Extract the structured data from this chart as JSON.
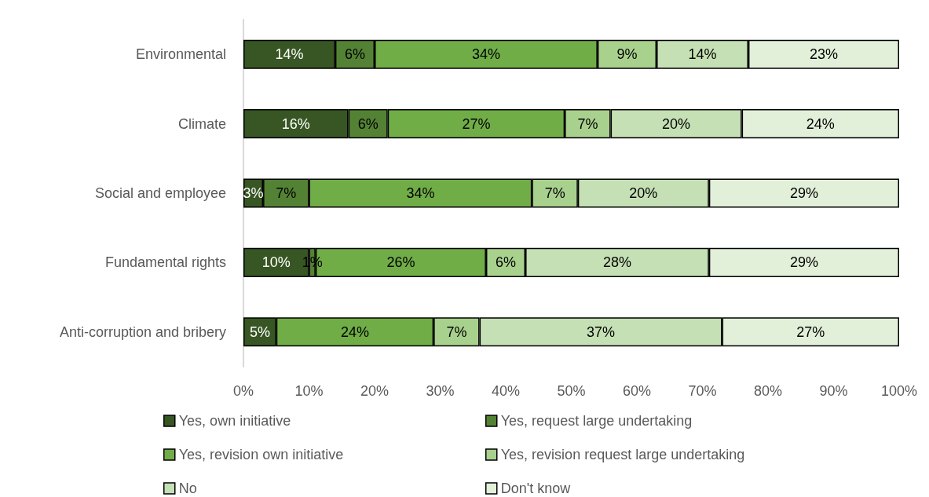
{
  "chart_data": {
    "type": "bar",
    "orientation": "horizontal",
    "stacked": true,
    "categories": [
      "Environmental",
      "Climate",
      "Social and employee",
      "Fundamental rights",
      "Anti-corruption and bribery"
    ],
    "series": [
      {
        "name": "Yes, own initiative",
        "color": "#375623",
        "values": [
          14,
          16,
          3,
          10,
          5
        ],
        "value_labels": [
          "14%",
          "16%",
          "3%",
          "10%",
          "5%"
        ]
      },
      {
        "name": "Yes, request large undertaking",
        "color": "#548235",
        "values": [
          6,
          6,
          7,
          1,
          0
        ],
        "value_labels": [
          "6%",
          "6%",
          "7%",
          "1%",
          null
        ]
      },
      {
        "name": "Yes, revision own initiative",
        "color": "#70ad47",
        "values": [
          34,
          27,
          34,
          26,
          24
        ],
        "value_labels": [
          "34%",
          "27%",
          "34%",
          "26%",
          "24%"
        ]
      },
      {
        "name": "Yes, revision request large undertaking",
        "color": "#a9d18e",
        "values": [
          9,
          7,
          7,
          6,
          7
        ],
        "value_labels": [
          "9%",
          "7%",
          "7%",
          "6%",
          "7%"
        ]
      },
      {
        "name": "No",
        "color": "#c5e0b4",
        "values": [
          14,
          20,
          20,
          28,
          37
        ],
        "value_labels": [
          "14%",
          "20%",
          "20%",
          "28%",
          "37%"
        ]
      },
      {
        "name": "Don't know",
        "color": "#e2f0d9",
        "values": [
          23,
          24,
          29,
          29,
          27
        ],
        "value_labels": [
          "23%",
          "24%",
          "29%",
          "29%",
          "27%"
        ]
      }
    ],
    "xlim": [
      0,
      100
    ],
    "xticks": [
      {
        "value": 0,
        "label": "0%"
      },
      {
        "value": 10,
        "label": "10%"
      },
      {
        "value": 20,
        "label": "20%"
      },
      {
        "value": 30,
        "label": "30%"
      },
      {
        "value": 40,
        "label": "40%"
      },
      {
        "value": 50,
        "label": "50%"
      },
      {
        "value": 60,
        "label": "60%"
      },
      {
        "value": 70,
        "label": "70%"
      },
      {
        "value": 80,
        "label": "80%"
      },
      {
        "value": 90,
        "label": "90%"
      },
      {
        "value": 100,
        "label": "100%"
      }
    ],
    "grid": false,
    "legend": "bottom"
  }
}
